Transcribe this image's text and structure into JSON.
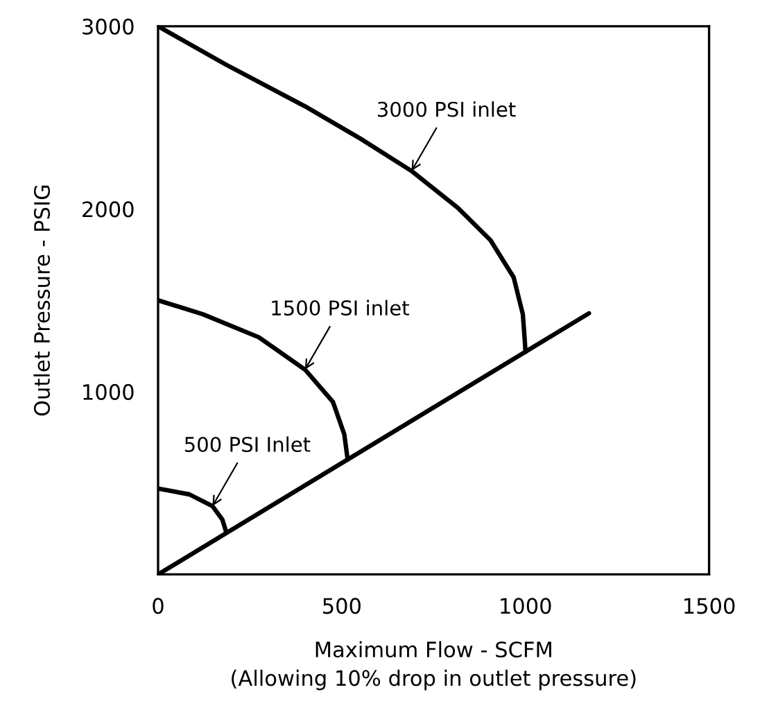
{
  "chart_data": {
    "type": "line",
    "xlabel": "Maximum Flow - SCFM\n(Allowing 10% drop in outlet pressure)",
    "ylabel": "Outlet Pressure - PSIG",
    "xlim": [
      0,
      1500
    ],
    "ylim": [
      0,
      3000
    ],
    "xticks": [
      0,
      500,
      1000,
      1500
    ],
    "yticks": [
      1000,
      2000,
      3000
    ],
    "grid": false,
    "legend": false,
    "marker": "none",
    "line_style": "solid",
    "series": [
      {
        "color": "#000000",
        "x": [
          0,
          1173
        ],
        "values": [
          0,
          1429
        ]
      },
      {
        "color": "#000000",
        "x": [
          0,
          185,
          400,
          551,
          690,
          816,
          905,
          968,
          993,
          999,
          1000
        ],
        "values": [
          3000,
          2790,
          2562,
          2385,
          2208,
          2006,
          1829,
          1626,
          1424,
          1260,
          1218
        ]
      },
      {
        "color": "#000000",
        "x": [
          0,
          122,
          274,
          400,
          476,
          507,
          516
        ],
        "values": [
          1500,
          1424,
          1298,
          1121,
          944,
          766,
          629
        ]
      },
      {
        "color": "#000000",
        "x": [
          0,
          85,
          148,
          175,
          185
        ],
        "values": [
          470,
          438,
          374,
          300,
          235
        ]
      }
    ],
    "annotations": [
      {
        "text": "3000 PSI inlet",
        "x": 690,
        "y": 2208
      },
      {
        "text": "1500 PSI inlet",
        "x": 400,
        "y": 1121
      },
      {
        "text": "500 PSI Inlet",
        "x": 148,
        "y": 374
      }
    ]
  }
}
